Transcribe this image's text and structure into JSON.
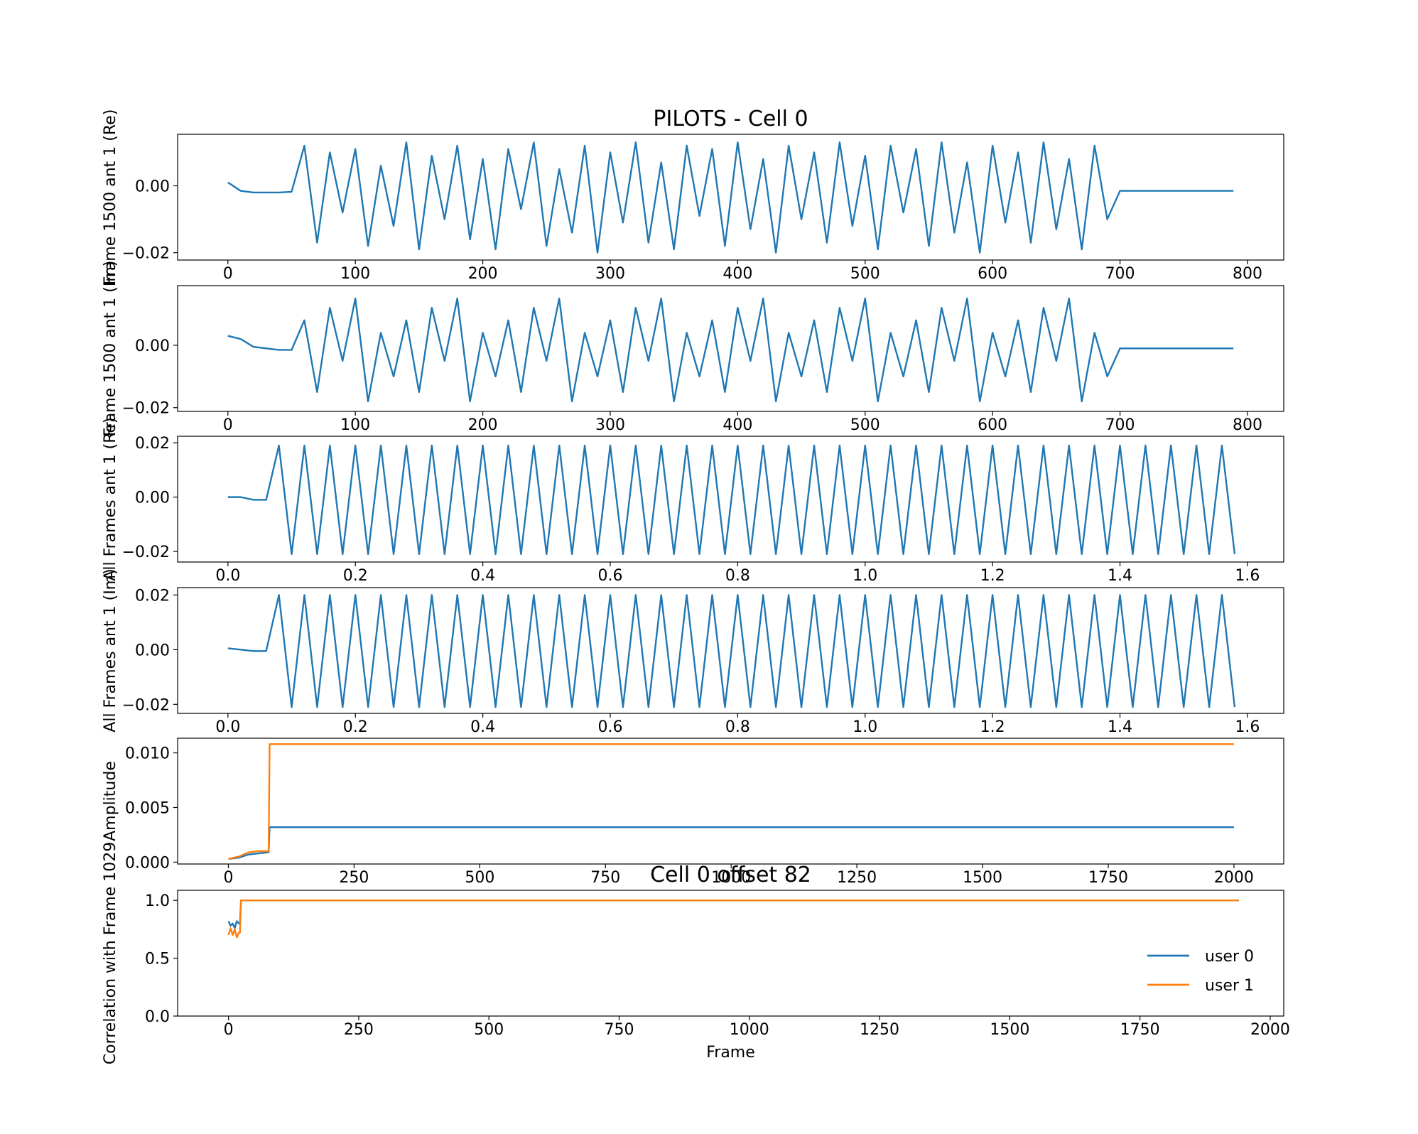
{
  "chart_data": [
    {
      "type": "line",
      "title": "PILOTS - Cell 0",
      "ylabel": "Frame 1500 ant 1 (Re)",
      "xlim": [
        -39.45,
        828.45
      ],
      "ylim": [
        -0.0222,
        0.0154
      ],
      "xticks": [
        0,
        100,
        200,
        300,
        400,
        500,
        600,
        700,
        800
      ],
      "yticks": [
        {
          "value": -0.02,
          "label": "−0.02"
        },
        {
          "value": 0,
          "label": "0.00"
        }
      ],
      "x": [
        0,
        10,
        20,
        30,
        40,
        50,
        60,
        70,
        80,
        90,
        100,
        110,
        120,
        130,
        140,
        150,
        160,
        170,
        180,
        190,
        200,
        210,
        220,
        230,
        240,
        250,
        260,
        270,
        280,
        290,
        300,
        310,
        320,
        330,
        340,
        350,
        360,
        370,
        380,
        390,
        400,
        410,
        420,
        430,
        440,
        450,
        460,
        470,
        480,
        490,
        500,
        510,
        520,
        530,
        540,
        550,
        560,
        570,
        580,
        590,
        600,
        610,
        620,
        630,
        640,
        650,
        660,
        670,
        680,
        690,
        700,
        710,
        720,
        730,
        740,
        750,
        760,
        770,
        780,
        789
      ],
      "series": [
        {
          "color": "#1f77b4",
          "values": [
            0.001,
            -0.0015,
            -0.002,
            -0.002,
            -0.002,
            -0.0018,
            0.012,
            -0.017,
            0.01,
            -0.008,
            0.011,
            -0.018,
            0.006,
            -0.012,
            0.013,
            -0.019,
            0.009,
            -0.01,
            0.012,
            -0.016,
            0.008,
            -0.019,
            0.011,
            -0.007,
            0.013,
            -0.018,
            0.005,
            -0.014,
            0.012,
            -0.02,
            0.01,
            -0.011,
            0.013,
            -0.017,
            0.007,
            -0.019,
            0.012,
            -0.009,
            0.011,
            -0.018,
            0.013,
            -0.013,
            0.008,
            -0.02,
            0.012,
            -0.01,
            0.01,
            -0.017,
            0.013,
            -0.012,
            0.009,
            -0.019,
            0.012,
            -0.008,
            0.011,
            -0.018,
            0.013,
            -0.014,
            0.007,
            -0.02,
            0.012,
            -0.011,
            0.01,
            -0.017,
            0.013,
            -0.013,
            0.008,
            -0.019,
            0.012,
            -0.01,
            -0.0015,
            -0.0015,
            -0.0015,
            -0.0015,
            -0.0015,
            -0.0015,
            -0.0015,
            -0.0015,
            -0.0015,
            -0.0015
          ]
        }
      ]
    },
    {
      "type": "line",
      "ylabel": "Frame 1500 ant 1 (Im)",
      "xlim": [
        -39.45,
        828.45
      ],
      "ylim": [
        -0.0212,
        0.0191
      ],
      "xticks": [
        0,
        100,
        200,
        300,
        400,
        500,
        600,
        700,
        800
      ],
      "yticks": [
        {
          "value": -0.02,
          "label": "−0.02"
        },
        {
          "value": 0,
          "label": "0.00"
        }
      ],
      "x": [
        0,
        10,
        20,
        30,
        40,
        50,
        60,
        70,
        80,
        90,
        100,
        110,
        120,
        130,
        140,
        150,
        160,
        170,
        180,
        190,
        200,
        210,
        220,
        230,
        240,
        250,
        260,
        270,
        280,
        290,
        300,
        310,
        320,
        330,
        340,
        350,
        360,
        370,
        380,
        390,
        400,
        410,
        420,
        430,
        440,
        450,
        460,
        470,
        480,
        490,
        500,
        510,
        520,
        530,
        540,
        550,
        560,
        570,
        580,
        590,
        600,
        610,
        620,
        630,
        640,
        650,
        660,
        670,
        680,
        690,
        700,
        710,
        720,
        730,
        740,
        750,
        760,
        770,
        780,
        789
      ],
      "series": [
        {
          "color": "#1f77b4",
          "values": [
            0.003,
            0.002,
            -0.0005,
            -0.001,
            -0.0015,
            -0.0015,
            0.008,
            -0.015,
            0.012,
            -0.005,
            0.015,
            -0.018,
            0.004,
            -0.01,
            0.008,
            -0.015,
            0.012,
            -0.005,
            0.015,
            -0.018,
            0.004,
            -0.01,
            0.008,
            -0.015,
            0.012,
            -0.005,
            0.015,
            -0.018,
            0.004,
            -0.01,
            0.008,
            -0.015,
            0.012,
            -0.005,
            0.015,
            -0.018,
            0.004,
            -0.01,
            0.008,
            -0.015,
            0.012,
            -0.005,
            0.015,
            -0.018,
            0.004,
            -0.01,
            0.008,
            -0.015,
            0.012,
            -0.005,
            0.015,
            -0.018,
            0.004,
            -0.01,
            0.008,
            -0.015,
            0.012,
            -0.005,
            0.015,
            -0.018,
            0.004,
            -0.01,
            0.008,
            -0.015,
            0.012,
            -0.005,
            0.015,
            -0.018,
            0.004,
            -0.01,
            -0.001,
            -0.001,
            -0.001,
            -0.001,
            -0.001,
            -0.001,
            -0.001,
            -0.001,
            -0.001,
            -0.001
          ]
        }
      ]
    },
    {
      "type": "line",
      "ylabel": "All Frames ant 1 (Re)",
      "xlim": [
        -0.079,
        1.657
      ],
      "ylim": [
        -0.0239,
        0.0224
      ],
      "xticks": [
        {
          "value": 0,
          "label": "0.0"
        },
        0.2,
        0.4,
        0.6,
        0.8,
        {
          "value": 1,
          "label": "1.0"
        },
        1.2,
        1.4,
        1.6
      ],
      "yticks": [
        {
          "value": -0.02,
          "label": "−0.02"
        },
        {
          "value": 0,
          "label": "0.00"
        },
        {
          "value": 0.02,
          "label": "0.02"
        }
      ],
      "x": [
        0,
        0.02,
        0.04,
        0.06,
        0.08,
        0.1,
        0.12,
        0.14,
        0.16,
        0.18,
        0.2,
        0.22,
        0.24,
        0.26,
        0.28,
        0.3,
        0.32,
        0.34,
        0.36,
        0.38,
        0.4,
        0.42,
        0.44,
        0.46,
        0.48,
        0.5,
        0.52,
        0.54,
        0.56,
        0.58,
        0.6,
        0.62,
        0.64,
        0.66,
        0.68,
        0.7,
        0.72,
        0.74,
        0.76,
        0.78,
        0.8,
        0.82,
        0.84,
        0.86,
        0.88,
        0.9,
        0.92,
        0.94,
        0.96,
        0.98,
        1,
        1.02,
        1.04,
        1.06,
        1.08,
        1.1,
        1.12,
        1.14,
        1.16,
        1.18,
        1.2,
        1.22,
        1.24,
        1.26,
        1.28,
        1.3,
        1.32,
        1.34,
        1.36,
        1.38,
        1.4,
        1.42,
        1.44,
        1.46,
        1.48,
        1.5,
        1.52,
        1.54,
        1.56,
        1.58
      ],
      "series": [
        {
          "color": "#1f77b4",
          "values": [
            0,
            0,
            -0.001,
            -0.001,
            0.019,
            -0.021,
            0.019,
            -0.021,
            0.019,
            -0.021,
            0.019,
            -0.021,
            0.019,
            -0.021,
            0.019,
            -0.021,
            0.019,
            -0.021,
            0.019,
            -0.021,
            0.019,
            -0.021,
            0.019,
            -0.021,
            0.019,
            -0.021,
            0.019,
            -0.021,
            0.019,
            -0.021,
            0.019,
            -0.021,
            0.019,
            -0.021,
            0.019,
            -0.021,
            0.019,
            -0.021,
            0.019,
            -0.021,
            0.019,
            -0.021,
            0.019,
            -0.021,
            0.019,
            -0.021,
            0.019,
            -0.021,
            0.019,
            -0.021,
            0.019,
            -0.021,
            0.019,
            -0.021,
            0.019,
            -0.021,
            0.019,
            -0.021,
            0.019,
            -0.021,
            0.019,
            -0.021,
            0.019,
            -0.021,
            0.019,
            -0.021,
            0.019,
            -0.021,
            0.019,
            -0.021,
            0.019,
            -0.021,
            0.019,
            -0.021,
            0.019,
            -0.021,
            0.019,
            -0.021,
            0.019,
            -0.021
          ]
        }
      ]
    },
    {
      "type": "line",
      "ylabel": "All Frames ant 1 (Im)",
      "xlim": [
        -0.079,
        1.657
      ],
      "ylim": [
        -0.0233,
        0.0227
      ],
      "xticks": [
        {
          "value": 0,
          "label": "0.0"
        },
        0.2,
        0.4,
        0.6,
        0.8,
        {
          "value": 1,
          "label": "1.0"
        },
        1.2,
        1.4,
        1.6
      ],
      "yticks": [
        {
          "value": -0.02,
          "label": "−0.02"
        },
        {
          "value": 0,
          "label": "0.00"
        },
        {
          "value": 0.02,
          "label": "0.02"
        }
      ],
      "x": [
        0,
        0.02,
        0.04,
        0.06,
        0.08,
        0.1,
        0.12,
        0.14,
        0.16,
        0.18,
        0.2,
        0.22,
        0.24,
        0.26,
        0.28,
        0.3,
        0.32,
        0.34,
        0.36,
        0.38,
        0.4,
        0.42,
        0.44,
        0.46,
        0.48,
        0.5,
        0.52,
        0.54,
        0.56,
        0.58,
        0.6,
        0.62,
        0.64,
        0.66,
        0.68,
        0.7,
        0.72,
        0.74,
        0.76,
        0.78,
        0.8,
        0.82,
        0.84,
        0.86,
        0.88,
        0.9,
        0.92,
        0.94,
        0.96,
        0.98,
        1,
        1.02,
        1.04,
        1.06,
        1.08,
        1.1,
        1.12,
        1.14,
        1.16,
        1.18,
        1.2,
        1.22,
        1.24,
        1.26,
        1.28,
        1.3,
        1.32,
        1.34,
        1.36,
        1.38,
        1.4,
        1.42,
        1.44,
        1.46,
        1.48,
        1.5,
        1.52,
        1.54,
        1.56,
        1.58
      ],
      "series": [
        {
          "color": "#1f77b4",
          "values": [
            0.0005,
            0,
            -0.0005,
            -0.0005,
            0.02,
            -0.021,
            0.02,
            -0.021,
            0.02,
            -0.021,
            0.02,
            -0.021,
            0.02,
            -0.021,
            0.02,
            -0.021,
            0.02,
            -0.021,
            0.02,
            -0.021,
            0.02,
            -0.021,
            0.02,
            -0.021,
            0.02,
            -0.021,
            0.02,
            -0.021,
            0.02,
            -0.021,
            0.02,
            -0.021,
            0.02,
            -0.021,
            0.02,
            -0.021,
            0.02,
            -0.021,
            0.02,
            -0.021,
            0.02,
            -0.021,
            0.02,
            -0.021,
            0.02,
            -0.021,
            0.02,
            -0.021,
            0.02,
            -0.021,
            0.02,
            -0.021,
            0.02,
            -0.021,
            0.02,
            -0.021,
            0.02,
            -0.021,
            0.02,
            -0.021,
            0.02,
            -0.021,
            0.02,
            -0.021,
            0.02,
            -0.021,
            0.02,
            -0.021,
            0.02,
            -0.021,
            0.02,
            -0.021,
            0.02,
            -0.021,
            0.02,
            -0.021,
            0.02,
            -0.021,
            0.02,
            -0.021
          ]
        }
      ]
    },
    {
      "type": "line",
      "ylabel": "Amplitude",
      "xlim": [
        -101,
        2099
      ],
      "ylim": [
        -0.00017,
        0.01134
      ],
      "xticks": [
        0,
        250,
        500,
        750,
        1000,
        1250,
        1500,
        1750,
        2000
      ],
      "yticks": [
        {
          "value": 0,
          "label": "0.000"
        },
        {
          "value": 0.005,
          "label": "0.005"
        },
        {
          "value": 0.01,
          "label": "0.010"
        }
      ],
      "x": [
        0,
        20,
        40,
        60,
        80,
        82,
        100,
        200,
        300,
        400,
        500,
        600,
        700,
        800,
        900,
        1000,
        1100,
        1200,
        1300,
        1400,
        1500,
        1600,
        1700,
        1800,
        1900,
        2000
      ],
      "series": [
        {
          "color": "#1f77b4",
          "values": [
            0.0003,
            0.0004,
            0.0007,
            0.0008,
            0.0009,
            0.0032,
            0.0032,
            0.0032,
            0.0032,
            0.0032,
            0.0032,
            0.0032,
            0.0032,
            0.0032,
            0.0032,
            0.0032,
            0.0032,
            0.0032,
            0.0032,
            0.0032,
            0.0032,
            0.0032,
            0.0032,
            0.0032,
            0.0032,
            0.0032
          ]
        },
        {
          "color": "#ff7f0e",
          "values": [
            0.0003,
            0.0005,
            0.0009,
            0.001,
            0.001,
            0.0108,
            0.0108,
            0.0108,
            0.0108,
            0.0108,
            0.0108,
            0.0108,
            0.0108,
            0.0108,
            0.0108,
            0.0108,
            0.0108,
            0.0108,
            0.0108,
            0.0108,
            0.0108,
            0.0108,
            0.0108,
            0.0108,
            0.0108,
            0.0108
          ]
        }
      ]
    },
    {
      "type": "line",
      "title": "Cell 0 offset 82",
      "ylabel": "Correlation with Frame 1029",
      "xlabel": "Frame",
      "xlim": [
        -97.7,
        2026
      ],
      "ylim": [
        0,
        1.087
      ],
      "xticks": [
        0,
        250,
        500,
        750,
        1000,
        1250,
        1500,
        1750,
        2000
      ],
      "yticks": [
        {
          "value": 0,
          "label": "0.0"
        },
        0.5,
        {
          "value": 1,
          "label": "1.0"
        }
      ],
      "legend": "lower right",
      "x": [
        0,
        4,
        8,
        12,
        16,
        20,
        22,
        24,
        50,
        100,
        250,
        500,
        750,
        1000,
        1250,
        1500,
        1750,
        1940
      ],
      "series": [
        {
          "name": "user 0",
          "color": "#1f77b4",
          "values": [
            0.82,
            0.78,
            0.8,
            0.76,
            0.82,
            0.8,
            0.8,
            1,
            1,
            1,
            1,
            1,
            1,
            1,
            1,
            1,
            1,
            1
          ]
        },
        {
          "name": "user 1",
          "color": "#ff7f0e",
          "values": [
            0.7,
            0.76,
            0.7,
            0.75,
            0.68,
            0.72,
            0.72,
            1,
            1,
            1,
            1,
            1,
            1,
            1,
            1,
            1,
            1,
            1
          ]
        }
      ]
    }
  ]
}
